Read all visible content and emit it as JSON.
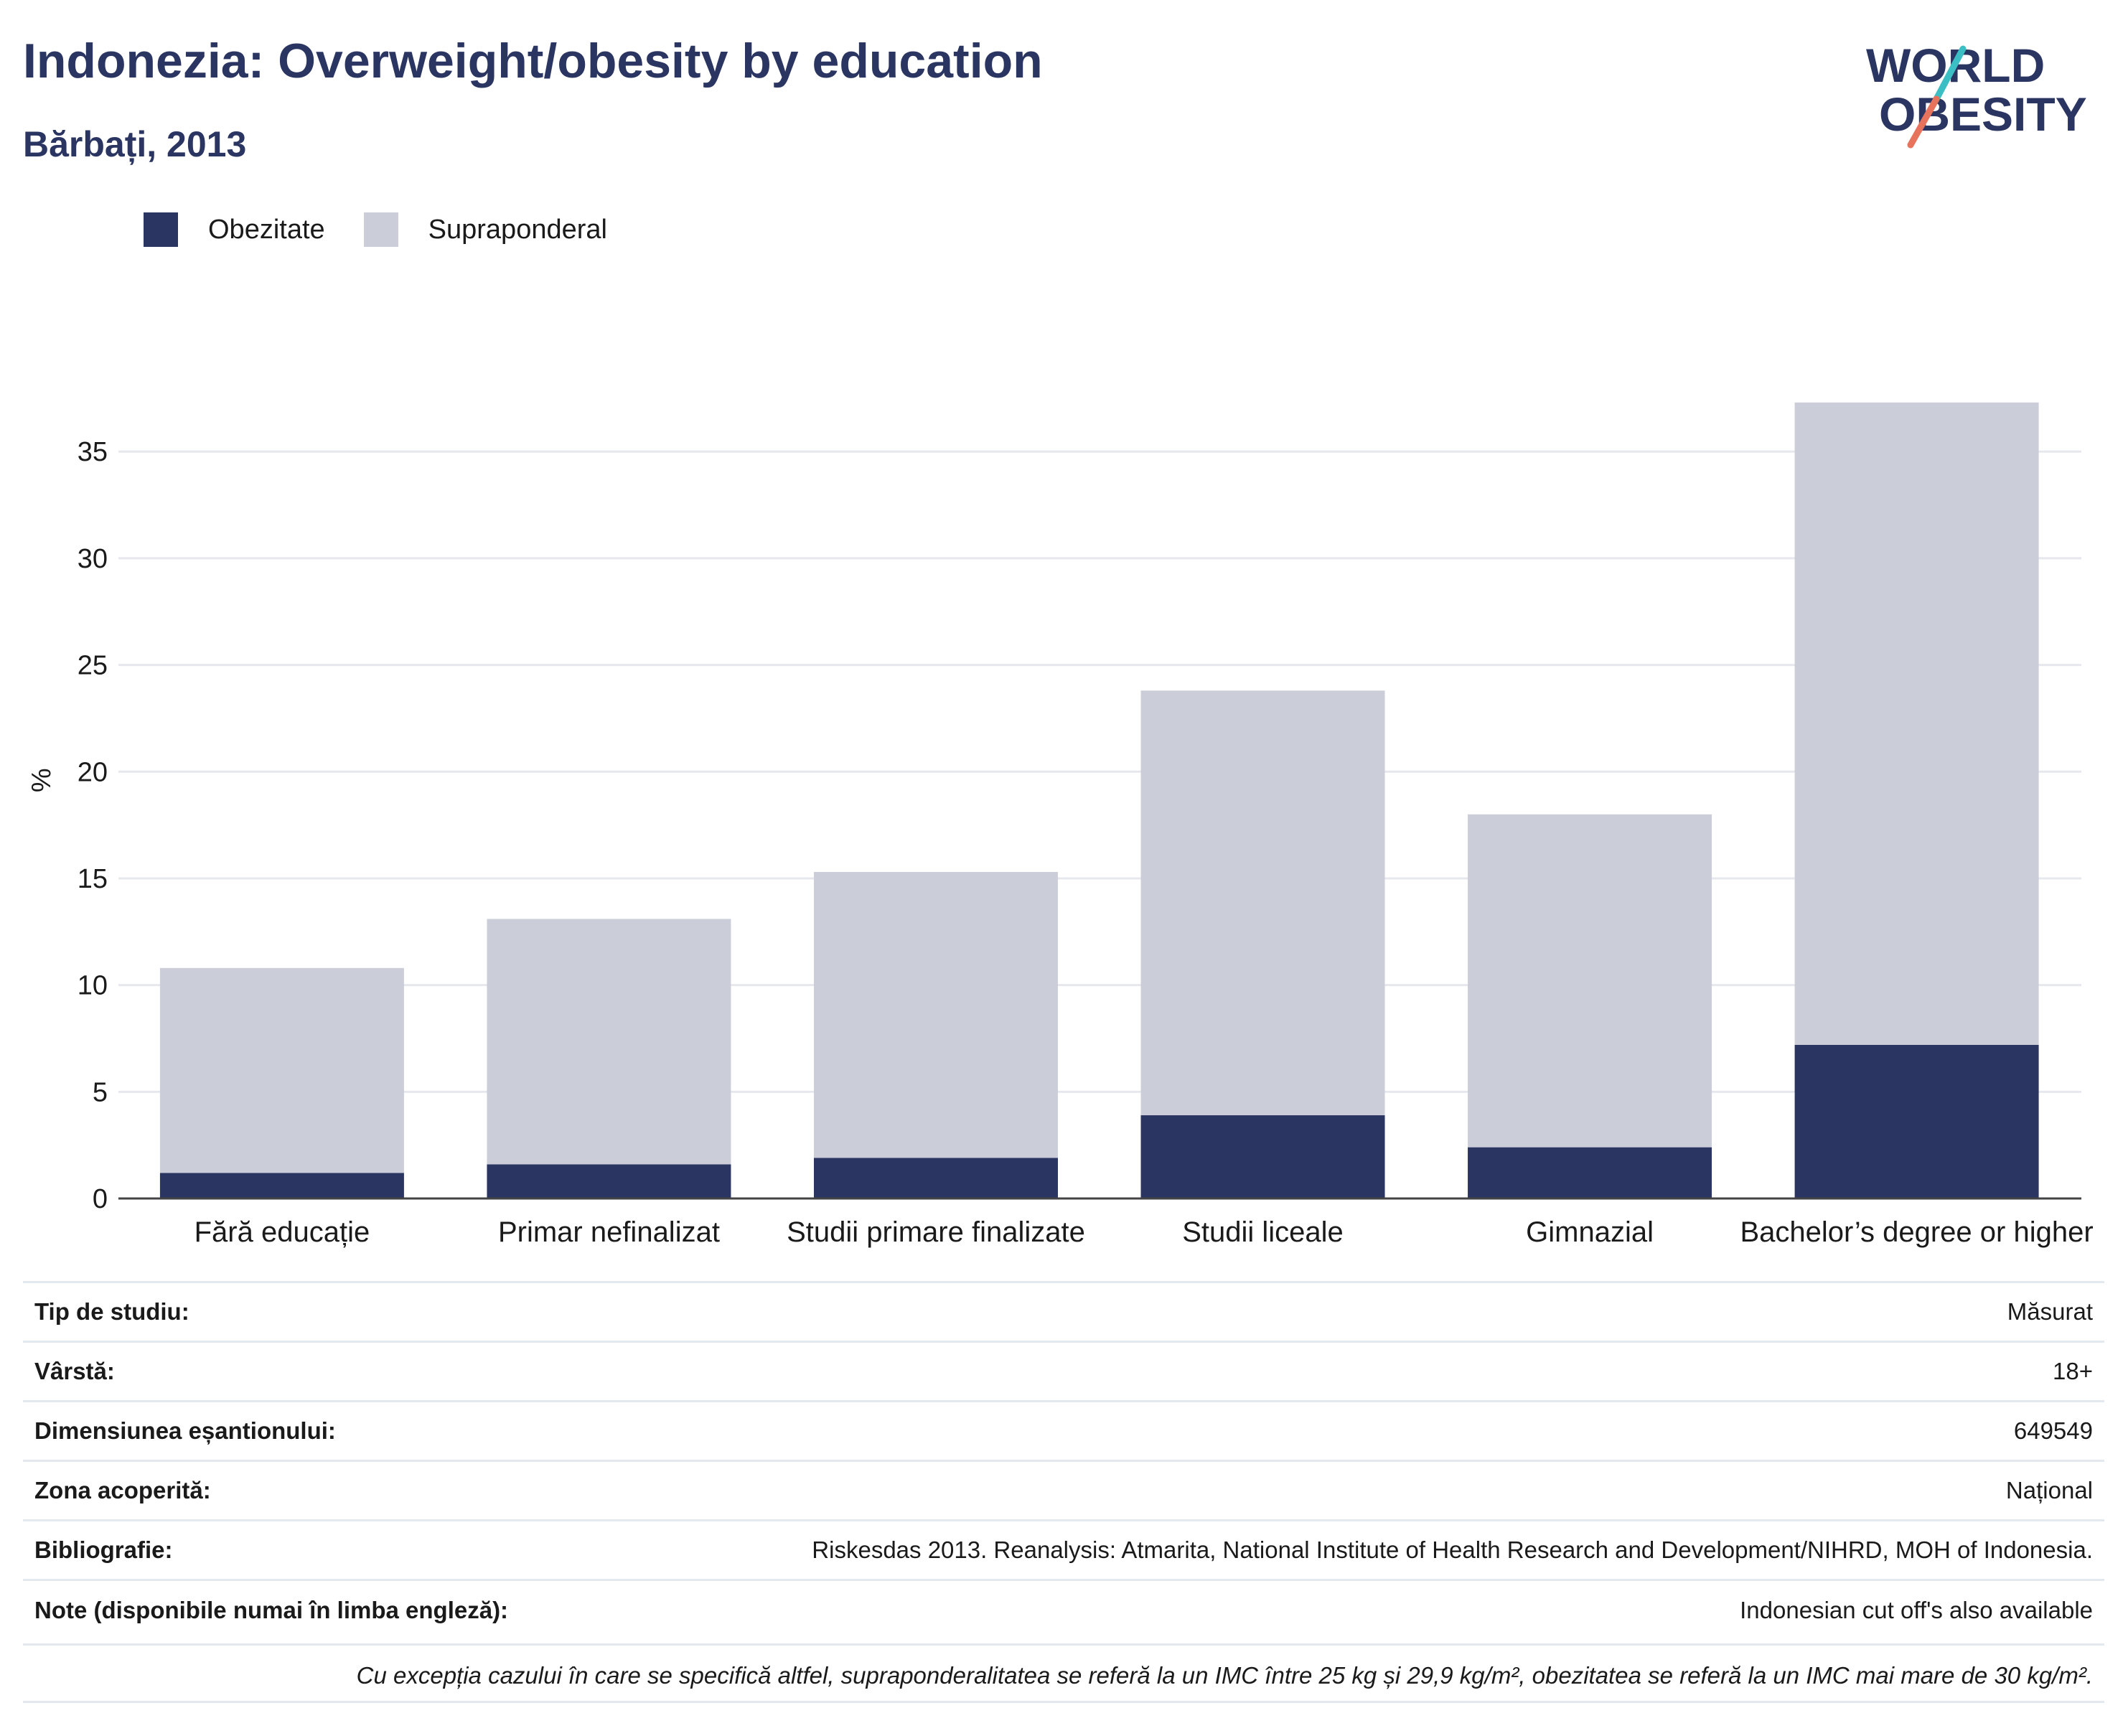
{
  "header": {
    "title": "Indonezia: Overweight/obesity by education",
    "subtitle": "Bărbați, 2013"
  },
  "logo": {
    "line1": "WORLD",
    "line2": "OBESITY",
    "colors": {
      "text": "#2b3562",
      "slash_top": "#3bbfc4",
      "slash_bottom": "#e8735d"
    }
  },
  "legend": [
    {
      "label": "Obezitate",
      "color": "#2b3562"
    },
    {
      "label": "Supraponderal",
      "color": "#cbcdd8"
    }
  ],
  "chart_data": {
    "type": "bar",
    "stacked": true,
    "ylabel": "%",
    "ylim": [
      0,
      38
    ],
    "yticks": [
      0,
      5,
      10,
      15,
      20,
      25,
      30,
      35
    ],
    "grid": true,
    "legend_position": "top-left",
    "categories": [
      "Fără educație",
      "Primar nefinalizat",
      "Studii primare finalizate",
      "Studii liceale",
      "Gimnazial",
      "Bachelor’s degree or higher"
    ],
    "series": [
      {
        "name": "Obezitate",
        "color": "#2b3562",
        "values": [
          1.2,
          1.6,
          1.9,
          3.9,
          2.4,
          7.2
        ]
      },
      {
        "name": "Supraponderal",
        "color": "#cbcdd8",
        "values": [
          9.6,
          11.5,
          13.4,
          19.9,
          15.6,
          30.1
        ]
      }
    ]
  },
  "info_table": [
    {
      "key": "Tip de studiu:",
      "value": "Măsurat"
    },
    {
      "key": "Vârstă:",
      "value": "18+"
    },
    {
      "key": "Dimensiunea eșantionului:",
      "value": "649549"
    },
    {
      "key": "Zona acoperită:",
      "value": "Național"
    },
    {
      "key": "Bibliografie:",
      "value": "Riskesdas 2013. Reanalysis: Atmarita, National Institute of Health Research and Development/NIHRD, MOH of Indonesia."
    },
    {
      "key": "Note (disponibile numai în limba engleză):",
      "value": "Indonesian cut off's also available"
    }
  ],
  "footnote": "Cu excepția cazului în care se specifică altfel, supraponderalitatea se referă la un IMC între 25 kg și 29,9 kg/m², obezitatea se referă la un IMC mai mare de 30 kg/m²."
}
